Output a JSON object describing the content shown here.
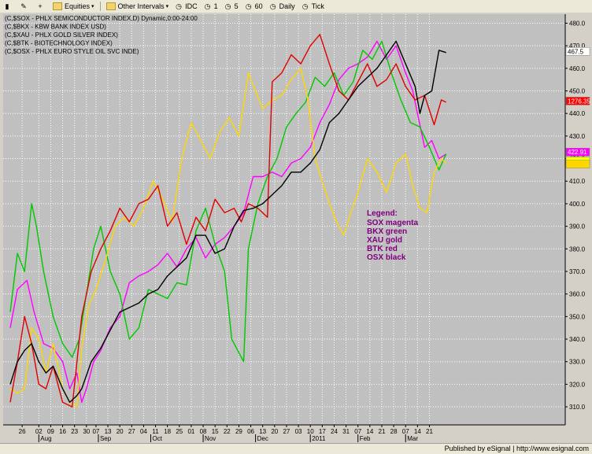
{
  "toolbar": {
    "equities_label": "Equities",
    "other_intervals_label": "Other Intervals",
    "idc_label": "IDC",
    "int_1": "1",
    "int_5": "5",
    "int_60": "60",
    "daily_label": "Daily",
    "tick_label": "Tick"
  },
  "footer": {
    "published": "Published by eSignal | http://www.esignal.com"
  },
  "chart_data": {
    "type": "line",
    "title_lines": [
      "(C,$SOX - PHLX SEMICONDUCTOR INDEX,D) Dynamic,0:00-24:00",
      "(C,$BKX - KBW BANK INDEX USD)",
      "(C,$XAU - PHLX GOLD SILVER INDEX)",
      "(C,$BTK - BIOTECHNOLOGY INDEX)",
      "(C,$OSX - PHLX EURO STYLE OIL SVC INDE)"
    ],
    "ylim": [
      302,
      484
    ],
    "y_ticks": [
      310,
      320,
      330,
      340,
      350,
      360,
      370,
      380,
      390,
      400,
      410,
      420,
      430,
      440,
      450,
      460,
      470,
      480
    ],
    "x_range": [
      0,
      236
    ],
    "x_ticks": [
      {
        "label": "26",
        "i": 5
      },
      {
        "label": "02",
        "i": 12
      },
      {
        "label": "09",
        "i": 17
      },
      {
        "label": "16",
        "i": 22
      },
      {
        "label": "23",
        "i": 27
      },
      {
        "label": "30",
        "i": 32
      },
      {
        "label": "07",
        "i": 36
      },
      {
        "label": "13",
        "i": 41
      },
      {
        "label": "20",
        "i": 46
      },
      {
        "label": "27",
        "i": 51
      },
      {
        "label": "04",
        "i": 56
      },
      {
        "label": "11",
        "i": 61
      },
      {
        "label": "18",
        "i": 66
      },
      {
        "label": "25",
        "i": 71
      },
      {
        "label": "01",
        "i": 76
      },
      {
        "label": "08",
        "i": 81
      },
      {
        "label": "15",
        "i": 86
      },
      {
        "label": "22",
        "i": 91
      },
      {
        "label": "29",
        "i": 96
      },
      {
        "label": "06",
        "i": 101
      },
      {
        "label": "13",
        "i": 106
      },
      {
        "label": "20",
        "i": 111
      },
      {
        "label": "27",
        "i": 116
      },
      {
        "label": "03",
        "i": 121
      },
      {
        "label": "10",
        "i": 126
      },
      {
        "label": "17",
        "i": 131
      },
      {
        "label": "24",
        "i": 136
      },
      {
        "label": "31",
        "i": 141
      },
      {
        "label": "07",
        "i": 146
      },
      {
        "label": "14",
        "i": 151
      },
      {
        "label": "21",
        "i": 156
      },
      {
        "label": "28",
        "i": 161
      },
      {
        "label": "07",
        "i": 166
      },
      {
        "label": "14",
        "i": 171
      },
      {
        "label": "21",
        "i": 176
      }
    ],
    "month_labels": [
      {
        "label": "Aug",
        "i": 12
      },
      {
        "label": "Sep",
        "i": 37
      },
      {
        "label": "Oct",
        "i": 59
      },
      {
        "label": "Nov",
        "i": 81
      },
      {
        "label": "Dec",
        "i": 103
      },
      {
        "label": "2011",
        "i": 126
      },
      {
        "label": "Feb",
        "i": 146
      },
      {
        "label": "Mar",
        "i": 166
      }
    ],
    "last_value_tags": [
      {
        "value": "467.5",
        "y": 467.5,
        "bg": "#ffffff",
        "fg": "#000000"
      },
      {
        "value": "1276.35",
        "y": 445.5,
        "bg": "#ff0000",
        "fg": "#ffffff"
      },
      {
        "value": "422.91",
        "y": 422.9,
        "bg": "#ff00ff",
        "fg": "#ffffff"
      },
      {
        "value": "",
        "y": 419,
        "bg": "#ffff00",
        "fg": "#000000"
      },
      {
        "value": "",
        "y": 417.5,
        "bg": "#ffd700",
        "fg": "#000000"
      }
    ],
    "legend": {
      "title": "Legend:",
      "items": [
        "SOX magenta",
        "BKX green",
        "XAU gold",
        "BTK red",
        "OSX black"
      ]
    },
    "series": [
      {
        "name": "SOX",
        "color": "#ff00ff",
        "points": [
          [
            0,
            345
          ],
          [
            3,
            362
          ],
          [
            7,
            366
          ],
          [
            10,
            352
          ],
          [
            14,
            338
          ],
          [
            18,
            336
          ],
          [
            22,
            330
          ],
          [
            25,
            318
          ],
          [
            28,
            325
          ],
          [
            30,
            312
          ],
          [
            32,
            318
          ],
          [
            35,
            330
          ],
          [
            38,
            335
          ],
          [
            42,
            345
          ],
          [
            46,
            350
          ],
          [
            50,
            365
          ],
          [
            54,
            368
          ],
          [
            58,
            370
          ],
          [
            62,
            373
          ],
          [
            66,
            378
          ],
          [
            70,
            372
          ],
          [
            74,
            380
          ],
          [
            78,
            385
          ],
          [
            82,
            376
          ],
          [
            86,
            382
          ],
          [
            90,
            385
          ],
          [
            94,
            390
          ],
          [
            98,
            396
          ],
          [
            102,
            412
          ],
          [
            106,
            412
          ],
          [
            110,
            414
          ],
          [
            114,
            412
          ],
          [
            118,
            418
          ],
          [
            122,
            420
          ],
          [
            126,
            425
          ],
          [
            130,
            436
          ],
          [
            134,
            444
          ],
          [
            138,
            455
          ],
          [
            142,
            460
          ],
          [
            146,
            462
          ],
          [
            150,
            465
          ],
          [
            154,
            472
          ],
          [
            158,
            464
          ],
          [
            162,
            470
          ],
          [
            166,
            458
          ],
          [
            169,
            450
          ],
          [
            171,
            440
          ],
          [
            174,
            425
          ],
          [
            177,
            428
          ],
          [
            180,
            420
          ],
          [
            183,
            422
          ]
        ]
      },
      {
        "name": "BKX",
        "color": "#00c800",
        "points": [
          [
            0,
            352
          ],
          [
            3,
            378
          ],
          [
            6,
            370
          ],
          [
            9,
            400
          ],
          [
            11,
            390
          ],
          [
            14,
            370
          ],
          [
            18,
            350
          ],
          [
            22,
            338
          ],
          [
            26,
            332
          ],
          [
            29,
            340
          ],
          [
            32,
            360
          ],
          [
            35,
            380
          ],
          [
            38,
            390
          ],
          [
            42,
            370
          ],
          [
            46,
            360
          ],
          [
            50,
            340
          ],
          [
            54,
            345
          ],
          [
            58,
            362
          ],
          [
            62,
            360
          ],
          [
            66,
            358
          ],
          [
            70,
            365
          ],
          [
            74,
            364
          ],
          [
            78,
            388
          ],
          [
            82,
            398
          ],
          [
            86,
            382
          ],
          [
            90,
            370
          ],
          [
            93,
            340
          ],
          [
            96,
            334
          ],
          [
            98,
            330
          ],
          [
            100,
            380
          ],
          [
            104,
            400
          ],
          [
            108,
            412
          ],
          [
            112,
            420
          ],
          [
            116,
            434
          ],
          [
            120,
            440
          ],
          [
            124,
            445
          ],
          [
            128,
            456
          ],
          [
            132,
            452
          ],
          [
            136,
            458
          ],
          [
            140,
            448
          ],
          [
            144,
            454
          ],
          [
            148,
            468
          ],
          [
            152,
            464
          ],
          [
            156,
            472
          ],
          [
            160,
            458
          ],
          [
            164,
            446
          ],
          [
            168,
            436
          ],
          [
            172,
            434
          ],
          [
            176,
            425
          ],
          [
            180,
            415
          ],
          [
            183,
            422
          ]
        ]
      },
      {
        "name": "XAU",
        "color": "#ffd700",
        "points": [
          [
            0,
            318
          ],
          [
            3,
            316
          ],
          [
            6,
            318
          ],
          [
            9,
            345
          ],
          [
            12,
            340
          ],
          [
            15,
            325
          ],
          [
            18,
            338
          ],
          [
            22,
            318
          ],
          [
            25,
            312
          ],
          [
            28,
            310
          ],
          [
            30,
            336
          ],
          [
            33,
            355
          ],
          [
            36,
            362
          ],
          [
            40,
            375
          ],
          [
            44,
            390
          ],
          [
            48,
            394
          ],
          [
            52,
            390
          ],
          [
            56,
            398
          ],
          [
            60,
            410
          ],
          [
            64,
            402
          ],
          [
            68,
            392
          ],
          [
            72,
            420
          ],
          [
            76,
            436
          ],
          [
            80,
            428
          ],
          [
            84,
            420
          ],
          [
            88,
            432
          ],
          [
            92,
            438
          ],
          [
            96,
            430
          ],
          [
            100,
            458
          ],
          [
            103,
            450
          ],
          [
            106,
            442
          ],
          [
            110,
            446
          ],
          [
            114,
            448
          ],
          [
            118,
            455
          ],
          [
            122,
            460
          ],
          [
            125,
            446
          ],
          [
            128,
            420
          ],
          [
            131,
            410
          ],
          [
            134,
            400
          ],
          [
            137,
            392
          ],
          [
            140,
            386
          ],
          [
            143,
            396
          ],
          [
            146,
            405
          ],
          [
            150,
            420
          ],
          [
            154,
            414
          ],
          [
            158,
            405
          ],
          [
            162,
            418
          ],
          [
            166,
            422
          ],
          [
            169,
            408
          ],
          [
            172,
            398
          ],
          [
            175,
            396
          ],
          [
            178,
            414
          ],
          [
            181,
            420
          ],
          [
            183,
            418
          ]
        ]
      },
      {
        "name": "BTK",
        "color": "#e00000",
        "points": [
          [
            0,
            312
          ],
          [
            3,
            330
          ],
          [
            6,
            350
          ],
          [
            9,
            338
          ],
          [
            12,
            320
          ],
          [
            15,
            318
          ],
          [
            18,
            328
          ],
          [
            22,
            312
          ],
          [
            26,
            310
          ],
          [
            30,
            350
          ],
          [
            34,
            370
          ],
          [
            38,
            380
          ],
          [
            42,
            388
          ],
          [
            46,
            398
          ],
          [
            50,
            392
          ],
          [
            54,
            400
          ],
          [
            58,
            402
          ],
          [
            62,
            408
          ],
          [
            66,
            390
          ],
          [
            70,
            396
          ],
          [
            74,
            382
          ],
          [
            78,
            394
          ],
          [
            82,
            388
          ],
          [
            86,
            402
          ],
          [
            90,
            396
          ],
          [
            94,
            398
          ],
          [
            97,
            392
          ],
          [
            100,
            400
          ],
          [
            104,
            398
          ],
          [
            108,
            394
          ],
          [
            110,
            454
          ],
          [
            114,
            458
          ],
          [
            118,
            466
          ],
          [
            122,
            462
          ],
          [
            126,
            470
          ],
          [
            130,
            475
          ],
          [
            134,
            462
          ],
          [
            138,
            450
          ],
          [
            142,
            446
          ],
          [
            146,
            454
          ],
          [
            150,
            462
          ],
          [
            154,
            452
          ],
          [
            158,
            455
          ],
          [
            162,
            462
          ],
          [
            166,
            452
          ],
          [
            170,
            446
          ],
          [
            174,
            448
          ],
          [
            178,
            435
          ],
          [
            181,
            446
          ],
          [
            183,
            445
          ]
        ]
      },
      {
        "name": "OSX",
        "color": "#000000",
        "points": [
          [
            0,
            320
          ],
          [
            3,
            330
          ],
          [
            6,
            335
          ],
          [
            9,
            338
          ],
          [
            12,
            330
          ],
          [
            15,
            325
          ],
          [
            18,
            328
          ],
          [
            22,
            318
          ],
          [
            25,
            312
          ],
          [
            28,
            315
          ],
          [
            30,
            318
          ],
          [
            34,
            330
          ],
          [
            38,
            336
          ],
          [
            42,
            344
          ],
          [
            46,
            352
          ],
          [
            50,
            354
          ],
          [
            54,
            356
          ],
          [
            58,
            360
          ],
          [
            62,
            362
          ],
          [
            66,
            368
          ],
          [
            70,
            372
          ],
          [
            74,
            376
          ],
          [
            78,
            386
          ],
          [
            82,
            386
          ],
          [
            86,
            378
          ],
          [
            90,
            380
          ],
          [
            94,
            390
          ],
          [
            98,
            397
          ],
          [
            102,
            398
          ],
          [
            106,
            400
          ],
          [
            110,
            404
          ],
          [
            114,
            408
          ],
          [
            118,
            414
          ],
          [
            122,
            414
          ],
          [
            126,
            418
          ],
          [
            130,
            424
          ],
          [
            134,
            436
          ],
          [
            138,
            440
          ],
          [
            142,
            446
          ],
          [
            146,
            452
          ],
          [
            150,
            456
          ],
          [
            154,
            460
          ],
          [
            158,
            466
          ],
          [
            162,
            472
          ],
          [
            166,
            462
          ],
          [
            170,
            452
          ],
          [
            172,
            440
          ],
          [
            174,
            448
          ],
          [
            177,
            450
          ],
          [
            180,
            468
          ],
          [
            183,
            467
          ]
        ]
      }
    ]
  }
}
